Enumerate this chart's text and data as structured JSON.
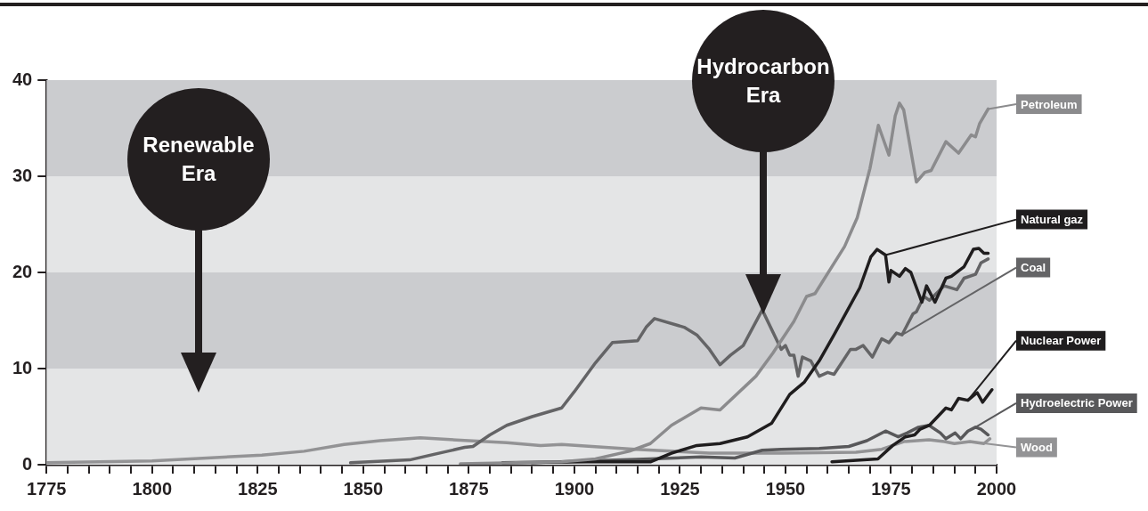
{
  "chart_data": {
    "type": "line",
    "series": [
      {
        "name": "Petroleum",
        "color": "#8b8b8d",
        "x": [
          1873,
          1897,
          1905,
          1913,
          1918,
          1923,
          1930,
          1934.5,
          1943,
          1947,
          1952,
          1955,
          1957,
          1964,
          1967,
          1970,
          1972,
          1974.5,
          1976,
          1977,
          1978,
          1981,
          1983,
          1984.5,
          1988,
          1991,
          1994,
          1995,
          1996,
          1998
        ],
        "values": [
          0.1,
          0.3,
          0.6,
          1.4,
          2.2,
          4.1,
          5.9,
          5.7,
          9.2,
          11.6,
          14.9,
          17.5,
          17.8,
          22.7,
          25.7,
          30.8,
          35.3,
          32.2,
          36.3,
          37.6,
          36.9,
          29.4,
          30.4,
          30.6,
          33.6,
          32.4,
          34.3,
          34.1,
          35.5,
          37
        ]
      },
      {
        "name": "Natural gaz",
        "color": "#1f1d1e",
        "x": [
          1883,
          1903,
          1918,
          1923,
          1929,
          1934.5,
          1941,
          1946.7,
          1951,
          1954.5,
          1958,
          1961.5,
          1967.6,
          1970.2,
          1971.7,
          1973.7,
          1974.5,
          1975,
          1977,
          1978.4,
          1979.7,
          1982.3,
          1983.4,
          1985.4,
          1988,
          1989.3,
          1992.3,
          1994.5,
          1995.8,
          1997,
          1998
        ],
        "values": [
          0.2,
          0.3,
          0.3,
          1.2,
          2.0,
          2.2,
          2.9,
          4.3,
          7.3,
          8.6,
          10.8,
          13.5,
          18.4,
          21.6,
          22.4,
          21.8,
          19.0,
          20.2,
          19.6,
          20.4,
          20.0,
          16.9,
          18.6,
          16.9,
          19.4,
          19.6,
          20.6,
          22.4,
          22.5,
          22.0,
          22.0
        ]
      },
      {
        "name": "Coal",
        "color": "#646466",
        "x": [
          1847,
          1861,
          1870,
          1874,
          1876,
          1880,
          1884,
          1890,
          1897,
          1900,
          1905,
          1909,
          1915,
          1917,
          1919,
          1926,
          1929,
          1932,
          1934.5,
          1937,
          1940,
          1944.5,
          1949,
          1950,
          1951,
          1952,
          1953,
          1954,
          1956,
          1958,
          1960,
          1961.5,
          1965.4,
          1966.7,
          1968.4,
          1970.6,
          1972.8,
          1974.5,
          1976.3,
          1977.6,
          1980.2,
          1981,
          1982.8,
          1984.1,
          1987.6,
          1990.6,
          1992.3,
          1995,
          1996.3,
          1998
        ],
        "values": [
          0.2,
          0.5,
          1.4,
          1.8,
          1.9,
          3.1,
          4.1,
          5.0,
          5.9,
          7.6,
          10.6,
          12.7,
          12.9,
          14.3,
          15.2,
          14.3,
          13.5,
          12.0,
          10.4,
          11.4,
          12.4,
          16.1,
          12.0,
          12.4,
          11.4,
          11.4,
          9.2,
          11.2,
          10.8,
          9.2,
          9.6,
          9.4,
          12.0,
          12.0,
          12.4,
          11.2,
          13.1,
          12.7,
          13.7,
          13.5,
          15.7,
          15.9,
          17.5,
          17.1,
          18.6,
          18.2,
          19.4,
          19.8,
          21.0,
          21.4
        ]
      },
      {
        "name": "Nuclear Power",
        "color": "#1f1d1e",
        "x": [
          1961,
          1971.9,
          1975.4,
          1978.4,
          1980.6,
          1981.9,
          1984.1,
          1988,
          1989.3,
          1991,
          1993.2,
          1995.4,
          1996.7,
          1998.9
        ],
        "values": [
          0.3,
          0.6,
          2.0,
          2.9,
          3.1,
          3.7,
          4.1,
          5.9,
          5.7,
          6.9,
          6.7,
          7.5,
          6.5,
          7.8
        ]
      },
      {
        "name": "Hydroelectric Power",
        "color": "#58585a",
        "x": [
          1890,
          1918,
          1930,
          1938,
          1944.5,
          1949,
          1958,
          1965,
          1969.3,
          1973.7,
          1976.7,
          1978.8,
          1981.5,
          1984,
          1986.7,
          1988,
          1990.2,
          1991.5,
          1993.2,
          1995,
          1996.3,
          1998
        ],
        "values": [
          0.2,
          0.6,
          0.8,
          0.7,
          1.5,
          1.6,
          1.7,
          1.9,
          2.5,
          3.5,
          2.9,
          3.3,
          3.9,
          4.1,
          3.3,
          2.7,
          3.3,
          2.7,
          3.5,
          3.9,
          3.7,
          3.1
        ]
      },
      {
        "name": "Wood",
        "color": "#939395",
        "x": [
          1775,
          1800,
          1826,
          1836,
          1845.5,
          1854,
          1863.5,
          1875,
          1884,
          1892,
          1897,
          1914.5,
          1932,
          1949,
          1966.7,
          1972.8,
          1978,
          1984,
          1987.6,
          1990,
          1993.7,
          1997,
          1998.4
        ],
        "values": [
          0.2,
          0.4,
          1.0,
          1.4,
          2.1,
          2.5,
          2.8,
          2.5,
          2.3,
          2.0,
          2.1,
          1.6,
          1.2,
          1.2,
          1.3,
          1.6,
          2.4,
          2.6,
          2.4,
          2.2,
          2.4,
          2.2,
          2.7
        ]
      }
    ],
    "xlim": [
      1775,
      2000
    ],
    "xticks": [
      1775,
      {
        "value": 1780,
        "label": null
      },
      {
        "value": 1785,
        "label": null
      },
      {
        "value": 1790,
        "label": null
      },
      {
        "value": 1795,
        "label": null
      },
      1800,
      {
        "value": 1805,
        "label": null
      },
      {
        "value": 1810,
        "label": null
      },
      {
        "value": 1815,
        "label": null
      },
      {
        "value": 1820,
        "label": null
      },
      1825,
      {
        "value": 1830,
        "label": null
      },
      {
        "value": 1835,
        "label": null
      },
      {
        "value": 1840,
        "label": null
      },
      {
        "value": 1845,
        "label": null
      },
      1850,
      {
        "value": 1855,
        "label": null
      },
      {
        "value": 1860,
        "label": null
      },
      {
        "value": 1865,
        "label": null
      },
      {
        "value": 1870,
        "label": null
      },
      1875,
      {
        "value": 1880,
        "label": null
      },
      {
        "value": 1885,
        "label": null
      },
      {
        "value": 1890,
        "label": null
      },
      {
        "value": 1895,
        "label": null
      },
      1900,
      {
        "value": 1905,
        "label": null
      },
      {
        "value": 1910,
        "label": null
      },
      {
        "value": 1915,
        "label": null
      },
      {
        "value": 1920,
        "label": null
      },
      1925,
      {
        "value": 1930,
        "label": null
      },
      {
        "value": 1935,
        "label": null
      },
      {
        "value": 1940,
        "label": null
      },
      {
        "value": 1945,
        "label": null
      },
      1950,
      {
        "value": 1955,
        "label": null
      },
      {
        "value": 1960,
        "label": null
      },
      {
        "value": 1965,
        "label": null
      },
      {
        "value": 1970,
        "label": null
      },
      1975,
      {
        "value": 1980,
        "label": null
      },
      {
        "value": 1985,
        "label": null
      },
      {
        "value": 1990,
        "label": null
      },
      {
        "value": 1995,
        "label": null
      },
      2000
    ],
    "ylim": [
      0,
      40
    ],
    "yticks": [
      0,
      10,
      20,
      30,
      40
    ],
    "bands": [
      {
        "axis": "y",
        "from": 0,
        "to": 10,
        "color": "#e4e5e6"
      },
      {
        "axis": "y",
        "from": 10,
        "to": 20,
        "color": "#cbcccf"
      },
      {
        "axis": "y",
        "from": 20,
        "to": 30,
        "color": "#e4e5e6"
      },
      {
        "axis": "y",
        "from": 30,
        "to": 40,
        "color": "#cbcccf"
      }
    ],
    "annotations": [
      "Renewable Era",
      "Hydrocarbon Era"
    ],
    "grid": false,
    "legend": "right"
  }
}
